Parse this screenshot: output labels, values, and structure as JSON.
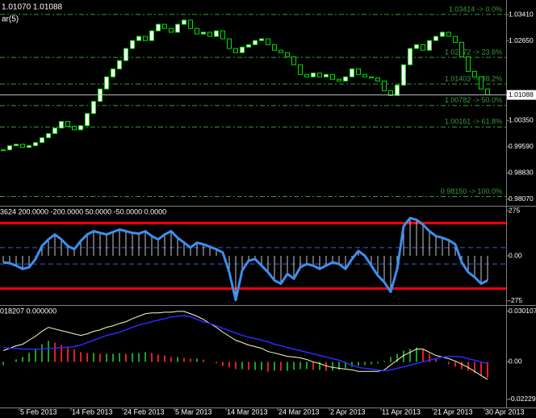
{
  "chart_data": [
    {
      "type": "candlestick",
      "title": "1.01070 1.01088",
      "subtitle": "ar(5)",
      "categories": [
        null,
        null,
        null,
        "5 Feb 2013",
        null,
        null,
        null,
        null,
        null,
        null,
        null,
        "14 Feb 2013",
        null,
        null,
        null,
        null,
        null,
        null,
        null,
        "24 Feb 2013",
        null,
        null,
        null,
        null,
        null,
        null,
        null,
        "5 Mar 2013",
        null,
        null,
        null,
        null,
        null,
        null,
        null,
        "14 Mar 2013",
        null,
        null,
        null,
        null,
        null,
        null,
        null,
        "24 Mar 2013",
        null,
        null,
        null,
        null,
        null,
        null,
        null,
        "2 Apr 2013",
        null,
        null,
        null,
        null,
        null,
        null,
        null,
        "11 Apr 2013",
        null,
        null,
        null,
        null,
        null,
        null,
        null,
        "21 Apr 2013",
        null,
        null,
        null,
        null,
        null,
        null,
        null,
        "30 Apr 2013"
      ],
      "values": [
        0.995,
        0.9962,
        0.9966,
        0.9957,
        0.9962,
        0.9971,
        0.9985,
        0.9997,
        1.0013,
        1.0032,
        1.0018,
        1.0008,
        1.002,
        1.0055,
        1.009,
        1.0126,
        1.0161,
        1.0184,
        1.0208,
        1.0243,
        1.0266,
        1.0278,
        1.0266,
        1.0294,
        1.0313,
        1.0301,
        1.029,
        1.0313,
        1.0325,
        1.0301,
        1.0285,
        1.029,
        1.0278,
        1.0294,
        1.0271,
        1.0243,
        1.0231,
        1.0247,
        1.0254,
        1.0266,
        1.0271,
        1.0254,
        1.0238,
        1.0231,
        1.0219,
        1.0196,
        1.0168,
        1.0161,
        1.0172,
        1.0161,
        1.0168,
        1.0154,
        1.0149,
        1.0161,
        1.0184,
        1.0168,
        1.0161,
        1.0158,
        1.0149,
        1.0121,
        1.0107,
        1.0137,
        1.0196,
        1.0243,
        1.0254,
        1.0238,
        1.0266,
        1.0278,
        1.029,
        1.0278,
        1.0261,
        1.0219,
        1.0177,
        1.0161,
        1.0126,
        1.0109
      ],
      "up_color": "#ffffff",
      "down_color": "#000000",
      "outline_color": "#00e000",
      "ylim": [
        0.97883,
        1.03832
      ],
      "yticks": [
        {
          "value": 1.0341,
          "label": "1.03410"
        },
        {
          "value": 1.0265,
          "label": "1.02650"
        },
        {
          "value": 1.0035,
          "label": "1.00350"
        },
        {
          "value": 0.9959,
          "label": "0.99590"
        },
        {
          "value": 0.9883,
          "label": "0.98830"
        },
        {
          "value": 0.9807,
          "label": "0.98070"
        }
      ],
      "current_price": {
        "value": 1.01088,
        "label": "1.01088"
      },
      "fib_color": "#3a9a3a",
      "fib_levels": [
        {
          "value": 1.03414,
          "label": "1.03414 -> 0.0%"
        },
        {
          "value": 1.02172,
          "label": "1.02172 -> 23.6%"
        },
        {
          "value": 1.01403,
          "label": "1.01403 -> 38.2%"
        },
        {
          "value": 1.00782,
          "label": "1.00782 -> 50.0%"
        },
        {
          "value": 1.00161,
          "label": "1.00161 -> 61.8%"
        },
        {
          "value": 0.9815,
          "label": "0.98150 -> 100.0%"
        }
      ]
    },
    {
      "type": "line",
      "title": "3624 200.0000 -200.0000 50.0000 -50.0000 0.0000",
      "values": [
        -40,
        -45,
        -60,
        -80,
        -70,
        -20,
        60,
        100,
        130,
        100,
        60,
        40,
        90,
        130,
        150,
        140,
        130,
        145,
        160,
        150,
        140,
        135,
        150,
        120,
        100,
        130,
        150,
        110,
        80,
        50,
        80,
        70,
        55,
        40,
        20,
        -100,
        -270,
        -90,
        -30,
        -20,
        -60,
        -100,
        -150,
        -170,
        -110,
        -140,
        -70,
        -50,
        -60,
        -80,
        -60,
        -40,
        -50,
        -80,
        -20,
        30,
        0,
        -60,
        -120,
        -160,
        -220,
        -80,
        180,
        230,
        220,
        190,
        150,
        120,
        110,
        95,
        70,
        -40,
        -100,
        -130,
        -170,
        -150
      ],
      "color": "#3c8ff0",
      "hist_color": "#c8c8c8",
      "ylim": [
        -300,
        300
      ],
      "yticks": [
        275,
        {
          "value": 0,
          "label": "0.00"
        },
        -275
      ],
      "levels": [
        {
          "value": 200,
          "color": "#ff0000",
          "dashed": false
        },
        {
          "value": -200,
          "color": "#ff0000",
          "dashed": false
        },
        {
          "value": 50,
          "color": "#3a5fd0",
          "dashed": true
        },
        {
          "value": -50,
          "color": "#3a5fd0",
          "dashed": true
        }
      ]
    },
    {
      "type": "macd",
      "title": "018207 0.000000",
      "histogram": {
        "up_color": "#20a020",
        "down_color": "#e02020",
        "values": [
          -0.0019,
          0,
          0.0015,
          0.0029,
          0.0053,
          0.0077,
          0.0106,
          0.0125,
          0.0115,
          0.01,
          0.0091,
          0.0076,
          0.0058,
          0.0052,
          0.0053,
          0.0048,
          0.0048,
          0.0048,
          0.0052,
          0.0048,
          0.0052,
          0.0052,
          0.0058,
          0.0053,
          0.0043,
          0.0038,
          0.0028,
          0.0029,
          0.0024,
          0.0019,
          0.0019,
          0.0014,
          0,
          -0.0009,
          -0.0024,
          -0.0033,
          -0.0043,
          -0.0043,
          -0.0048,
          -0.0048,
          -0.0048,
          -0.0058,
          -0.0052,
          -0.0053,
          -0.0053,
          -0.0047,
          -0.0043,
          -0.0043,
          -0.0048,
          -0.0048,
          -0.0053,
          -0.0052,
          -0.0048,
          -0.0038,
          -0.0029,
          -0.0024,
          -0.0019,
          -0.0014,
          -0.0009,
          0.0005,
          0.0029,
          0.0048,
          0.0067,
          0.0076,
          0.0086,
          0.0076,
          0.0047,
          0.0019,
          0,
          -0.0014,
          -0.0028,
          -0.0043,
          -0.0052,
          -0.0067,
          -0.0081,
          -0.0095
        ]
      },
      "series": [
        {
          "color": "#ffffc0",
          "values": [
            0.0067,
            0.0081,
            0.0096,
            0.0105,
            0.0129,
            0.0153,
            0.0182,
            0.0206,
            0.0196,
            0.0186,
            0.0177,
            0.0167,
            0.0158,
            0.0167,
            0.0182,
            0.0191,
            0.0206,
            0.0215,
            0.0229,
            0.0239,
            0.0258,
            0.0272,
            0.0287,
            0.0292,
            0.0292,
            0.0296,
            0.0296,
            0.0301,
            0.0301,
            0.0287,
            0.0272,
            0.0253,
            0.0229,
            0.0206,
            0.0177,
            0.0153,
            0.0129,
            0.0115,
            0.01,
            0.0091,
            0.0081,
            0.0062,
            0.0053,
            0.0043,
            0.0033,
            0.0029,
            0.0024,
            0.0014,
            0,
            -0.001,
            -0.0024,
            -0.0033,
            -0.0038,
            -0.0043,
            -0.0048,
            -0.0057,
            -0.0057,
            -0.0057,
            -0.0057,
            -0.0048,
            -0.0019,
            0.001,
            0.0038,
            0.0057,
            0.0076,
            0.0076,
            0.0057,
            0.0038,
            0.0029,
            0.0019,
            0.0005,
            -0.0014,
            -0.0033,
            -0.0057,
            -0.0081,
            -0.0105
          ]
        },
        {
          "color": "#2a2aff",
          "values": [
            0.0086,
            0.0081,
            0.0081,
            0.0076,
            0.0076,
            0.0076,
            0.0076,
            0.0081,
            0.0081,
            0.0086,
            0.0086,
            0.0091,
            0.01,
            0.0115,
            0.0129,
            0.0143,
            0.0158,
            0.0167,
            0.0177,
            0.0191,
            0.0206,
            0.022,
            0.0229,
            0.0239,
            0.0249,
            0.0258,
            0.0268,
            0.0272,
            0.0277,
            0.0268,
            0.0253,
            0.0239,
            0.0229,
            0.0215,
            0.0201,
            0.0186,
            0.0172,
            0.0158,
            0.0148,
            0.0139,
            0.0129,
            0.012,
            0.0105,
            0.0096,
            0.0086,
            0.0076,
            0.0067,
            0.0057,
            0.0048,
            0.0038,
            0.0029,
            0.0019,
            0.001,
            -0.0005,
            -0.0019,
            -0.0033,
            -0.0038,
            -0.0043,
            -0.0048,
            -0.0053,
            -0.0048,
            -0.0038,
            -0.0029,
            -0.0019,
            -0.001,
            0,
            0.001,
            0.0019,
            0.0029,
            0.0033,
            0.0033,
            0.0029,
            0.0019,
            0.001,
            0,
            -0.001
          ]
        }
      ],
      "ylim": [
        -0.0272,
        0.0334
      ],
      "yticks": [
        {
          "value": 0.030107,
          "label": "0.030107"
        },
        {
          "value": 0,
          "label": "0.00"
        },
        {
          "value": -0.02229,
          "label": "-0.02229"
        }
      ]
    }
  ]
}
